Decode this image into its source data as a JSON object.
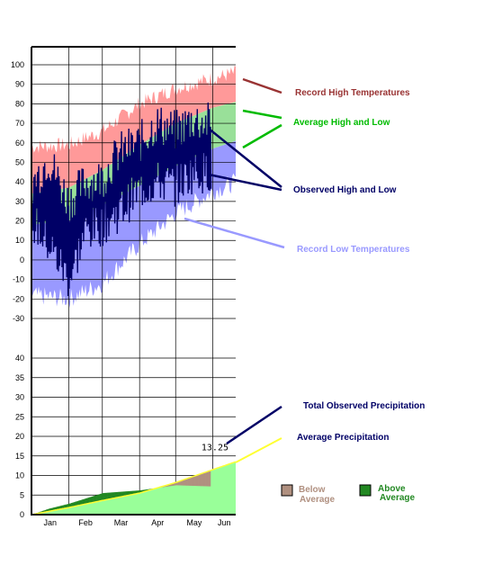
{
  "chart_data": [
    {
      "type": "area",
      "months": [
        "Jan",
        "Feb",
        "Mar",
        "Apr",
        "May",
        "Jun"
      ],
      "y_ticks": [
        100,
        90,
        80,
        70,
        60,
        50,
        40,
        30,
        20,
        10,
        0,
        -10,
        -20,
        -30
      ],
      "ylim": [
        -30,
        100
      ],
      "grid": true,
      "series": [
        {
          "name": "Record High Temperatures",
          "color": "#ff9999",
          "x": [
            "Jan 1",
            "Feb 1",
            "Mar 1",
            "Apr 1",
            "May 1",
            "Jun 1",
            "Jun 20"
          ],
          "values": [
            58,
            59,
            66,
            80,
            88,
            93,
            96
          ]
        },
        {
          "name": "Average High and Low",
          "color": "#99e099",
          "x": [
            "Jan 1",
            "Feb 1",
            "Mar 1",
            "Apr 1",
            "May 1",
            "Jun 1",
            "Jun 20"
          ],
          "high": [
            34,
            37,
            46,
            59,
            70,
            78,
            81
          ],
          "low": [
            18,
            20,
            28,
            38,
            48,
            57,
            61
          ]
        },
        {
          "name": "Record Low Temperatures",
          "color": "#9999ff",
          "x": [
            "Jan 1",
            "Feb 1",
            "Mar 1",
            "Apr 1",
            "May 1",
            "Jun 1",
            "Jun 20"
          ],
          "values": [
            -18,
            -20,
            -12,
            8,
            24,
            35,
            40
          ]
        },
        {
          "name": "Observed High and Low",
          "color": "#000066",
          "x": [
            "Jan 1",
            "Jan 15",
            "Feb 1",
            "Feb 15",
            "Mar 1",
            "Mar 15",
            "Apr 1",
            "Apr 15",
            "May 1",
            "May 15",
            "May 30"
          ],
          "high": [
            38,
            52,
            30,
            40,
            42,
            55,
            60,
            70,
            66,
            72,
            70
          ],
          "low": [
            20,
            8,
            -10,
            15,
            18,
            25,
            36,
            40,
            38,
            45,
            45
          ]
        }
      ],
      "labels": {
        "record_high": "Record High Temperatures",
        "average": "Average High and Low",
        "observed": "Observed High and Low",
        "record_low": "Record Low Temperatures"
      },
      "colors": {
        "record_high": "#993333",
        "average": "#00bb00",
        "observed": "#000066",
        "record_low": "#9999ff"
      }
    },
    {
      "type": "area",
      "months": [
        "Jan",
        "Feb",
        "Mar",
        "Apr",
        "May",
        "Jun"
      ],
      "y_ticks": [
        40,
        35,
        30,
        25,
        20,
        15,
        10,
        5,
        0
      ],
      "ylim": [
        0,
        40
      ],
      "grid": true,
      "series": [
        {
          "name": "Average Precipitation",
          "color": "#ffff33",
          "x": [
            "Jan 1",
            "Feb 1",
            "Mar 1",
            "Apr 1",
            "May 1",
            "Jun 1",
            "Jun 20"
          ],
          "values": [
            0,
            1.8,
            3.6,
            5.5,
            8.2,
            11.5,
            13.5
          ]
        },
        {
          "name": "Total Observed Precipitation",
          "color": "#000066",
          "x": [
            "Jan 1",
            "Jan 15",
            "Feb 1",
            "Mar 1",
            "Apr 1",
            "May 1",
            "May 30"
          ],
          "values": [
            0,
            1.5,
            2.8,
            5.5,
            6.2,
            7.5,
            7.2
          ]
        }
      ],
      "total_label": "13.25",
      "labels": {
        "observed": "Total Observed Precipitation",
        "average": "Average Precipitation",
        "below": "Below\nAverage",
        "above": "Above\nAverage"
      },
      "colors": {
        "average": "#ffff33",
        "observed": "#000066",
        "below": "#b09080",
        "above": "#228822",
        "area": "#99ff99"
      }
    }
  ]
}
